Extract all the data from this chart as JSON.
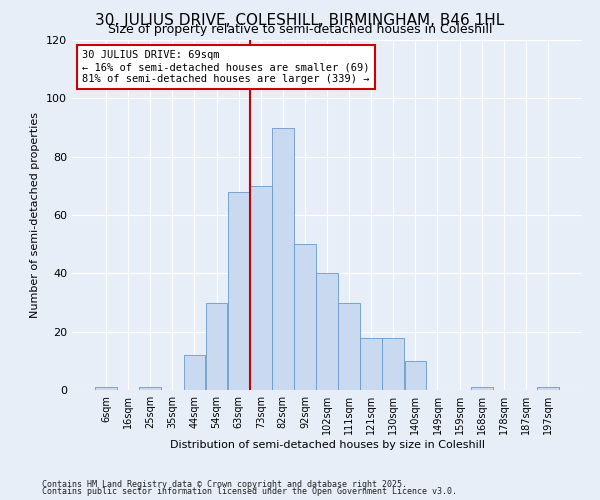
{
  "title": "30, JULIUS DRIVE, COLESHILL, BIRMINGHAM, B46 1HL",
  "subtitle": "Size of property relative to semi-detached houses in Coleshill",
  "xlabel": "Distribution of semi-detached houses by size in Coleshill",
  "ylabel": "Number of semi-detached properties",
  "categories": [
    "6sqm",
    "16sqm",
    "25sqm",
    "35sqm",
    "44sqm",
    "54sqm",
    "63sqm",
    "73sqm",
    "82sqm",
    "92sqm",
    "102sqm",
    "111sqm",
    "121sqm",
    "130sqm",
    "140sqm",
    "149sqm",
    "159sqm",
    "168sqm",
    "178sqm",
    "187sqm",
    "197sqm"
  ],
  "values": [
    1,
    0,
    1,
    0,
    12,
    30,
    68,
    70,
    90,
    50,
    40,
    30,
    18,
    18,
    10,
    0,
    0,
    1,
    0,
    0,
    1
  ],
  "bar_color": "#c9daf0",
  "bar_edge_color": "#6699cc",
  "vline_color": "#cc0000",
  "annotation_title": "30 JULIUS DRIVE: 69sqm",
  "annotation_line1": "← 16% of semi-detached houses are smaller (69)",
  "annotation_line2": "81% of semi-detached houses are larger (339) →",
  "annotation_box_color": "#ffffff",
  "annotation_box_edge": "#cc0000",
  "ylim": [
    0,
    120
  ],
  "yticks": [
    0,
    20,
    40,
    60,
    80,
    100,
    120
  ],
  "footer1": "Contains HM Land Registry data © Crown copyright and database right 2025.",
  "footer2": "Contains public sector information licensed under the Open Government Licence v3.0.",
  "bg_color": "#e8eef8",
  "plot_bg_color": "#e8eef8",
  "title_fontsize": 11,
  "subtitle_fontsize": 9,
  "figwidth": 6.0,
  "figheight": 5.0,
  "dpi": 100
}
